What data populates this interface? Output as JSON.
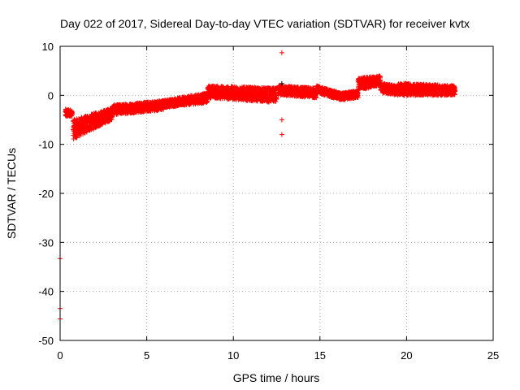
{
  "chart_data": {
    "type": "scatter",
    "title": "Day 022 of 2017, Sidereal Day-to-day VTEC variation (SDTVAR) for receiver kvtx",
    "xlabel": "GPS time / hours",
    "ylabel": "SDTVAR / TECUs",
    "xlim": [
      0,
      25
    ],
    "ylim": [
      -50,
      10
    ],
    "xticks": [
      "0",
      "5",
      "10",
      "15",
      "20",
      "25"
    ],
    "xtick_values": [
      0,
      5,
      10,
      15,
      20,
      25
    ],
    "yticks": [
      "10",
      "0",
      "-10",
      "-20",
      "-30",
      "-40",
      "-50"
    ],
    "ytick_values": [
      10,
      0,
      -10,
      -20,
      -30,
      -40,
      -50
    ],
    "grid": true,
    "marker": "+",
    "series": [
      {
        "name": "SDTVAR",
        "color": "#ff0000",
        "bands": [
          {
            "x": [
              0.3,
              0.7
            ],
            "y": [
              [
                -2.8,
                -4.5
              ],
              [
                -3.0,
                -4.2
              ]
            ]
          },
          {
            "x": [
              0.75,
              3.0
            ],
            "y": [
              [
                -5.0,
                -9.0
              ],
              [
                -2.5,
                -5.0
              ]
            ]
          },
          {
            "x": [
              3.0,
              6.0
            ],
            "y": [
              [
                -2.0,
                -4.0
              ],
              [
                -1.0,
                -3.0
              ]
            ]
          },
          {
            "x": [
              6.0,
              8.5
            ],
            "y": [
              [
                -1.0,
                -2.5
              ],
              [
                0.5,
                -1.5
              ]
            ]
          },
          {
            "x": [
              8.5,
              12.5
            ],
            "y": [
              [
                2.0,
                -0.5
              ],
              [
                1.5,
                -1.5
              ]
            ]
          },
          {
            "x": [
              12.6,
              14.8
            ],
            "y": [
              [
                2.0,
                0.0
              ],
              [
                1.5,
                -0.5
              ]
            ]
          },
          {
            "x": [
              14.8,
              16.2
            ],
            "y": [
              [
                2.0,
                0.5
              ],
              [
                0.5,
                -1.0
              ]
            ]
          },
          {
            "x": [
              16.2,
              17.2
            ],
            "y": [
              [
                0.5,
                -1.0
              ],
              [
                1.0,
                -0.5
              ]
            ]
          },
          {
            "x": [
              17.2,
              18.5
            ],
            "y": [
              [
                3.5,
                1.0
              ],
              [
                4.0,
                2.0
              ]
            ]
          },
          {
            "x": [
              18.5,
              19.5
            ],
            "y": [
              [
                2.5,
                0.5
              ],
              [
                2.0,
                0.0
              ]
            ]
          },
          {
            "x": [
              19.5,
              22.8
            ],
            "y": [
              [
                2.5,
                0.0
              ],
              [
                2.0,
                0.0
              ]
            ]
          }
        ],
        "points": [
          {
            "x": 12.8,
            "y": 8.7
          },
          {
            "x": 12.8,
            "y": -5.0
          },
          {
            "x": 12.8,
            "y": -8.0
          },
          {
            "x": 0.0,
            "y": -33.3
          },
          {
            "x": 0.0,
            "y": -43.5
          },
          {
            "x": 0.0,
            "y": -45.6
          }
        ]
      },
      {
        "name": "SDTVAR (black marker)",
        "color": "#000000",
        "points": [
          {
            "x": 12.8,
            "y": 2.4
          }
        ]
      }
    ]
  }
}
